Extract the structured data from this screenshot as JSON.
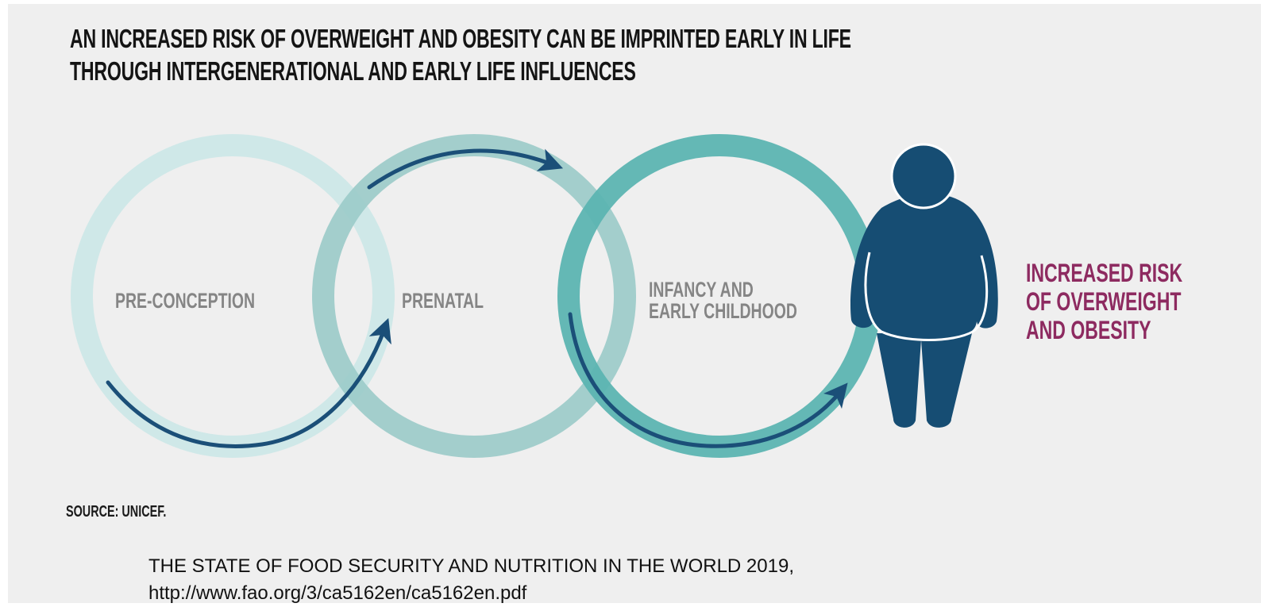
{
  "title": {
    "line1": "AN INCREASED RISK OF OVERWEIGHT AND OBESITY CAN BE IMPRINTED EARLY IN LIFE",
    "line2": "THROUGH INTERGENERATIONAL AND EARLY LIFE INFLUENCES"
  },
  "stages": [
    {
      "lines": [
        "PRE-CONCEPTION"
      ],
      "ring_color": "#cfe8e8"
    },
    {
      "lines": [
        "PRENATAL"
      ],
      "ring_color": "#9ccbc9"
    },
    {
      "lines": [
        "INFANCY AND",
        "EARLY CHILDHOOD"
      ],
      "ring_color": "#5cb4b1"
    }
  ],
  "figure_icon": "person-silhouette-icon",
  "outcome": {
    "lines": [
      "INCREASED RISK",
      "OF OVERWEIGHT",
      "AND OBESITY"
    ]
  },
  "source": "SOURCE: UNICEF.",
  "caption": {
    "line1": "THE STATE OF FOOD SECURITY AND NUTRITION IN THE WORLD 2019,",
    "line2": "http://www.fao.org/3/ca5162en/ca5162en.pdf"
  },
  "colors": {
    "background": "#efefef",
    "arrow": "#1b4f78",
    "figure": "#164d73",
    "outcome_text": "#8d2a60",
    "stage_text": "#858585"
  }
}
